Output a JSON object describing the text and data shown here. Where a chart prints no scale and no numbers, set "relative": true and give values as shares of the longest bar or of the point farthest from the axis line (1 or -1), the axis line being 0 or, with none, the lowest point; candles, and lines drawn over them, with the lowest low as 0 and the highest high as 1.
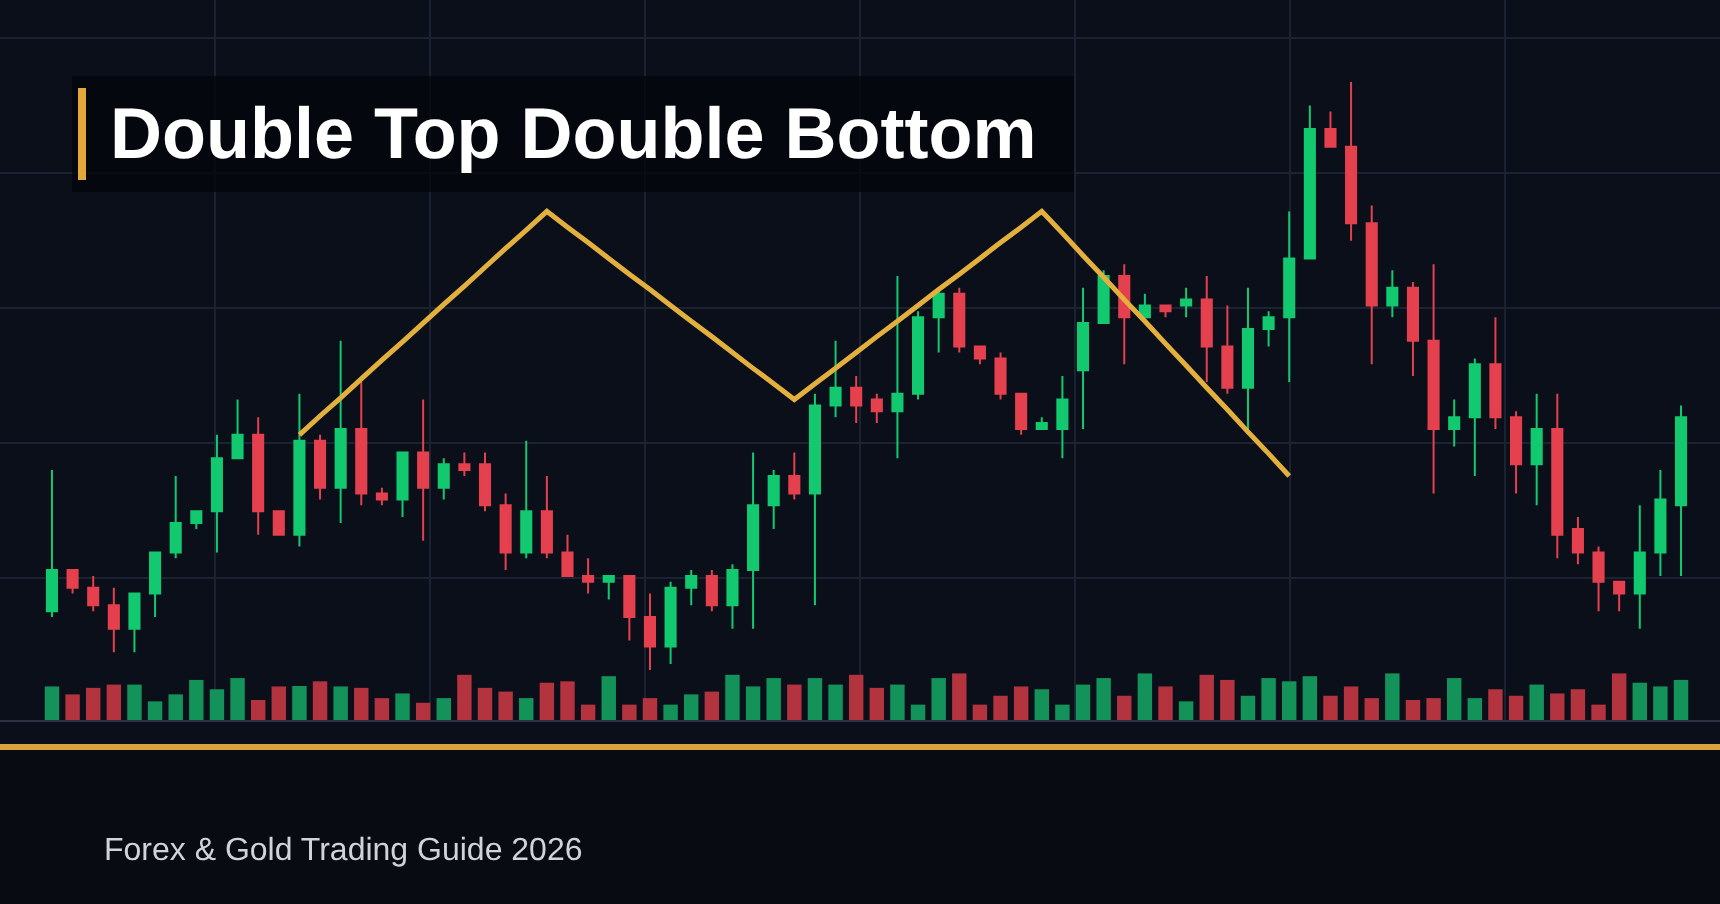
{
  "chart_data": [
    {
      "type": "candlestick",
      "title": "Double Top Double Bottom",
      "annotations": [
        "Forex & Gold Trading Guide 2026"
      ],
      "relative": true,
      "grid": true,
      "categories": [
        null,
        null,
        null,
        null,
        null,
        null,
        null,
        null,
        null,
        null,
        null,
        null,
        null,
        null,
        null,
        null,
        null,
        null,
        null,
        null,
        null,
        null,
        null,
        null,
        null,
        null,
        null,
        null,
        null,
        null,
        null,
        null,
        null,
        null,
        null,
        null,
        null,
        null,
        null,
        null,
        null,
        null,
        null,
        null,
        null,
        null,
        null,
        null,
        null,
        null,
        null,
        null,
        null,
        null,
        null,
        null,
        null,
        null,
        null,
        null,
        null,
        null,
        null,
        null,
        null,
        null,
        null,
        null,
        null,
        null,
        null,
        null,
        null,
        null,
        null,
        null,
        null,
        null,
        null,
        null
      ],
      "series": [
        {
          "type": "candlestick",
          "ohlc": [
            [
              0.1,
              0.34,
              0.09,
              0.17
            ],
            [
              0.17,
              0.17,
              0.13,
              0.14
            ],
            [
              0.14,
              0.16,
              0.1,
              0.11
            ],
            [
              0.11,
              0.14,
              0.03,
              0.07
            ],
            [
              0.07,
              0.13,
              0.03,
              0.13
            ],
            [
              0.13,
              0.2,
              0.09,
              0.2
            ],
            [
              0.2,
              0.33,
              0.19,
              0.25
            ],
            [
              0.25,
              0.27,
              0.24,
              0.27
            ],
            [
              0.27,
              0.4,
              0.2,
              0.36
            ],
            [
              0.36,
              0.46,
              0.36,
              0.4
            ],
            [
              0.4,
              0.43,
              0.23,
              0.27
            ],
            [
              0.27,
              0.27,
              0.23,
              0.23
            ],
            [
              0.23,
              0.47,
              0.21,
              0.39
            ],
            [
              0.39,
              0.4,
              0.29,
              0.31
            ],
            [
              0.31,
              0.56,
              0.25,
              0.41
            ],
            [
              0.41,
              0.49,
              0.28,
              0.3
            ],
            [
              0.3,
              0.31,
              0.28,
              0.29
            ],
            [
              0.29,
              0.37,
              0.26,
              0.37
            ],
            [
              0.37,
              0.46,
              0.22,
              0.31
            ],
            [
              0.31,
              0.36,
              0.29,
              0.35
            ],
            [
              0.35,
              0.37,
              0.33,
              0.34
            ],
            [
              0.35,
              0.37,
              0.27,
              0.28
            ],
            [
              0.28,
              0.3,
              0.17,
              0.2
            ],
            [
              0.2,
              0.39,
              0.19,
              0.27
            ],
            [
              0.27,
              0.33,
              0.19,
              0.2
            ],
            [
              0.2,
              0.23,
              0.16,
              0.16
            ],
            [
              0.16,
              0.19,
              0.13,
              0.15
            ],
            [
              0.15,
              0.16,
              0.12,
              0.16
            ],
            [
              0.16,
              0.16,
              0.05,
              0.09
            ],
            [
              0.09,
              0.13,
              0.0,
              0.04
            ],
            [
              0.04,
              0.15,
              0.01,
              0.14
            ],
            [
              0.14,
              0.17,
              0.11,
              0.16
            ],
            [
              0.16,
              0.17,
              0.1,
              0.11
            ],
            [
              0.11,
              0.18,
              0.07,
              0.17
            ],
            [
              0.17,
              0.37,
              0.07,
              0.28
            ],
            [
              0.28,
              0.34,
              0.24,
              0.33
            ],
            [
              0.33,
              0.37,
              0.29,
              0.3
            ],
            [
              0.3,
              0.47,
              0.11,
              0.45
            ],
            [
              0.45,
              0.56,
              0.43,
              0.48
            ],
            [
              0.48,
              0.5,
              0.42,
              0.45
            ],
            [
              0.46,
              0.47,
              0.42,
              0.44
            ],
            [
              0.44,
              0.67,
              0.36,
              0.47
            ],
            [
              0.47,
              0.61,
              0.46,
              0.6
            ],
            [
              0.6,
              0.65,
              0.54,
              0.64
            ],
            [
              0.64,
              0.65,
              0.54,
              0.55
            ],
            [
              0.55,
              0.55,
              0.52,
              0.53
            ],
            [
              0.53,
              0.54,
              0.46,
              0.47
            ],
            [
              0.47,
              0.47,
              0.4,
              0.41
            ],
            [
              0.41,
              0.43,
              0.41,
              0.42
            ],
            [
              0.41,
              0.5,
              0.36,
              0.46
            ],
            [
              0.51,
              0.65,
              0.41,
              0.59
            ],
            [
              0.59,
              0.68,
              0.59,
              0.67
            ],
            [
              0.67,
              0.69,
              0.52,
              0.6
            ],
            [
              0.6,
              0.64,
              0.6,
              0.62
            ],
            [
              0.62,
              0.62,
              0.6,
              0.61
            ],
            [
              0.62,
              0.65,
              0.6,
              0.63
            ],
            [
              0.63,
              0.67,
              0.49,
              0.55
            ],
            [
              0.55,
              0.62,
              0.47,
              0.48
            ],
            [
              0.48,
              0.65,
              0.4,
              0.58
            ],
            [
              0.58,
              0.61,
              0.55,
              0.6
            ],
            [
              0.6,
              0.78,
              0.49,
              0.7
            ],
            [
              0.7,
              0.96,
              0.7,
              0.92
            ],
            [
              0.92,
              0.95,
              0.89,
              0.89
            ],
            [
              0.89,
              1.0,
              0.73,
              0.76
            ],
            [
              0.76,
              0.79,
              0.52,
              0.62
            ],
            [
              0.62,
              0.68,
              0.6,
              0.65
            ],
            [
              0.65,
              0.66,
              0.5,
              0.56
            ],
            [
              0.56,
              0.69,
              0.3,
              0.41
            ],
            [
              0.41,
              0.46,
              0.38,
              0.43
            ],
            [
              0.43,
              0.53,
              0.33,
              0.52
            ],
            [
              0.52,
              0.6,
              0.41,
              0.43
            ],
            [
              0.43,
              0.44,
              0.3,
              0.35
            ],
            [
              0.35,
              0.47,
              0.28,
              0.41
            ],
            [
              0.41,
              0.47,
              0.19,
              0.23
            ],
            [
              0.24,
              0.26,
              0.18,
              0.2
            ],
            [
              0.2,
              0.21,
              0.1,
              0.15
            ],
            [
              0.15,
              0.15,
              0.1,
              0.13
            ],
            [
              0.13,
              0.28,
              0.07,
              0.2
            ],
            [
              0.2,
              0.34,
              0.16,
              0.29
            ],
            [
              0.28,
              0.45,
              0.16,
              0.43
            ]
          ],
          "colors": [
            "#12c970",
            "#e5404e",
            "#e5404e",
            "#e5404e",
            "#12c970",
            "#12c970",
            "#12c970",
            "#12c970",
            "#12c970",
            "#12c970",
            "#e5404e",
            "#e5404e",
            "#12c970",
            "#e5404e",
            "#12c970",
            "#e5404e",
            "#e5404e",
            "#12c970",
            "#e5404e",
            "#12c970",
            "#e5404e",
            "#e5404e",
            "#e5404e",
            "#12c970",
            "#e5404e",
            "#e5404e",
            "#e5404e",
            "#12c970",
            "#e5404e",
            "#e5404e",
            "#12c970",
            "#12c970",
            "#e5404e",
            "#12c970",
            "#12c970",
            "#12c970",
            "#e5404e",
            "#12c970",
            "#12c970",
            "#e5404e",
            "#e5404e",
            "#12c970",
            "#12c970",
            "#12c970",
            "#e5404e",
            "#e5404e",
            "#e5404e",
            "#e5404e",
            "#12c970",
            "#12c970",
            "#12c970",
            "#12c970",
            "#e5404e",
            "#12c970",
            "#e5404e",
            "#12c970",
            "#e5404e",
            "#e5404e",
            "#12c970",
            "#12c970",
            "#12c970",
            "#12c970",
            "#e5404e",
            "#e5404e",
            "#e5404e",
            "#12c970",
            "#e5404e",
            "#e5404e",
            "#12c970",
            "#12c970",
            "#e5404e",
            "#e5404e",
            "#12c970",
            "#e5404e",
            "#e5404e",
            "#e5404e",
            "#e5404e",
            "#12c970",
            "#12c970",
            "#12c970"
          ]
        },
        {
          "type": "line",
          "color": "#e3b03e",
          "values": [
            null,
            null,
            null,
            null,
            null,
            null,
            null,
            null,
            null,
            null,
            null,
            null,
            0.4,
            0.432,
            0.463,
            0.495,
            0.527,
            0.558,
            0.59,
            0.622,
            0.653,
            0.685,
            0.717,
            0.748,
            0.78,
            0.753,
            0.727,
            0.7,
            0.673,
            0.647,
            0.62,
            0.593,
            0.567,
            0.54,
            0.513,
            0.487,
            0.46,
            0.487,
            0.513,
            0.54,
            0.567,
            0.593,
            0.62,
            0.647,
            0.673,
            0.7,
            0.727,
            0.753,
            0.78,
            0.743,
            0.705,
            0.668,
            0.63,
            0.593,
            0.555,
            0.518,
            0.48,
            0.443,
            0.405,
            0.368,
            0.33,
            null,
            null,
            null,
            null,
            null,
            null,
            null,
            null,
            null,
            null,
            null,
            null,
            null,
            null,
            null,
            null,
            null,
            null,
            null
          ]
        }
      ]
    },
    {
      "type": "bar",
      "relative": true,
      "grid": "x",
      "categories": [
        null,
        null,
        null,
        null,
        null,
        null,
        null,
        null,
        null,
        null,
        null,
        null,
        null,
        null,
        null,
        null,
        null,
        null,
        null,
        null,
        null,
        null,
        null,
        null,
        null,
        null,
        null,
        null,
        null,
        null,
        null,
        null,
        null,
        null,
        null,
        null,
        null,
        null,
        null,
        null,
        null,
        null,
        null,
        null,
        null,
        null,
        null,
        null,
        null,
        null,
        null,
        null,
        null,
        null,
        null,
        null,
        null,
        null,
        null,
        null,
        null,
        null,
        null,
        null,
        null,
        null,
        null,
        null,
        null,
        null,
        null,
        null,
        null,
        null,
        null,
        null,
        null,
        null,
        null,
        null
      ],
      "values": [
        0.72,
        0.55,
        0.69,
        0.76,
        0.76,
        0.4,
        0.55,
        0.86,
        0.66,
        0.9,
        0.43,
        0.72,
        0.73,
        0.83,
        0.72,
        0.69,
        0.47,
        0.57,
        0.37,
        0.47,
        0.97,
        0.69,
        0.61,
        0.47,
        0.8,
        0.83,
        0.33,
        0.94,
        0.33,
        0.47,
        0.33,
        0.55,
        0.61,
        0.97,
        0.72,
        0.9,
        0.76,
        0.9,
        0.76,
        0.97,
        0.69,
        0.76,
        0.33,
        0.9,
        1,
        0.33,
        0.52,
        0.72,
        0.66,
        0.33,
        0.76,
        0.9,
        0.52,
        1,
        0.72,
        0.4,
        0.97,
        0.86,
        0.52,
        0.9,
        0.83,
        0.94,
        0.52,
        0.72,
        0.47,
        1,
        0.43,
        0.47,
        0.9,
        0.47,
        0.66,
        0.52,
        0.76,
        0.57,
        0.66,
        0.33,
        1,
        0.8,
        0.72,
        0.86
      ],
      "colors": [
        "#13935a",
        "#b3333f",
        "#b3333f",
        "#b3333f",
        "#13935a",
        "#13935a",
        "#13935a",
        "#13935a",
        "#13935a",
        "#13935a",
        "#b3333f",
        "#b3333f",
        "#13935a",
        "#b3333f",
        "#13935a",
        "#b3333f",
        "#b3333f",
        "#13935a",
        "#b3333f",
        "#13935a",
        "#b3333f",
        "#b3333f",
        "#b3333f",
        "#13935a",
        "#b3333f",
        "#b3333f",
        "#b3333f",
        "#13935a",
        "#b3333f",
        "#b3333f",
        "#13935a",
        "#13935a",
        "#b3333f",
        "#13935a",
        "#13935a",
        "#13935a",
        "#b3333f",
        "#13935a",
        "#13935a",
        "#b3333f",
        "#b3333f",
        "#13935a",
        "#13935a",
        "#13935a",
        "#b3333f",
        "#b3333f",
        "#b3333f",
        "#b3333f",
        "#13935a",
        "#13935a",
        "#13935a",
        "#13935a",
        "#b3333f",
        "#13935a",
        "#b3333f",
        "#13935a",
        "#b3333f",
        "#b3333f",
        "#13935a",
        "#13935a",
        "#13935a",
        "#13935a",
        "#b3333f",
        "#b3333f",
        "#b3333f",
        "#13935a",
        "#b3333f",
        "#b3333f",
        "#13935a",
        "#13935a",
        "#b3333f",
        "#b3333f",
        "#13935a",
        "#b3333f",
        "#b3333f",
        "#b3333f",
        "#b3333f",
        "#13935a",
        "#13935a",
        "#13935a"
      ]
    }
  ]
}
